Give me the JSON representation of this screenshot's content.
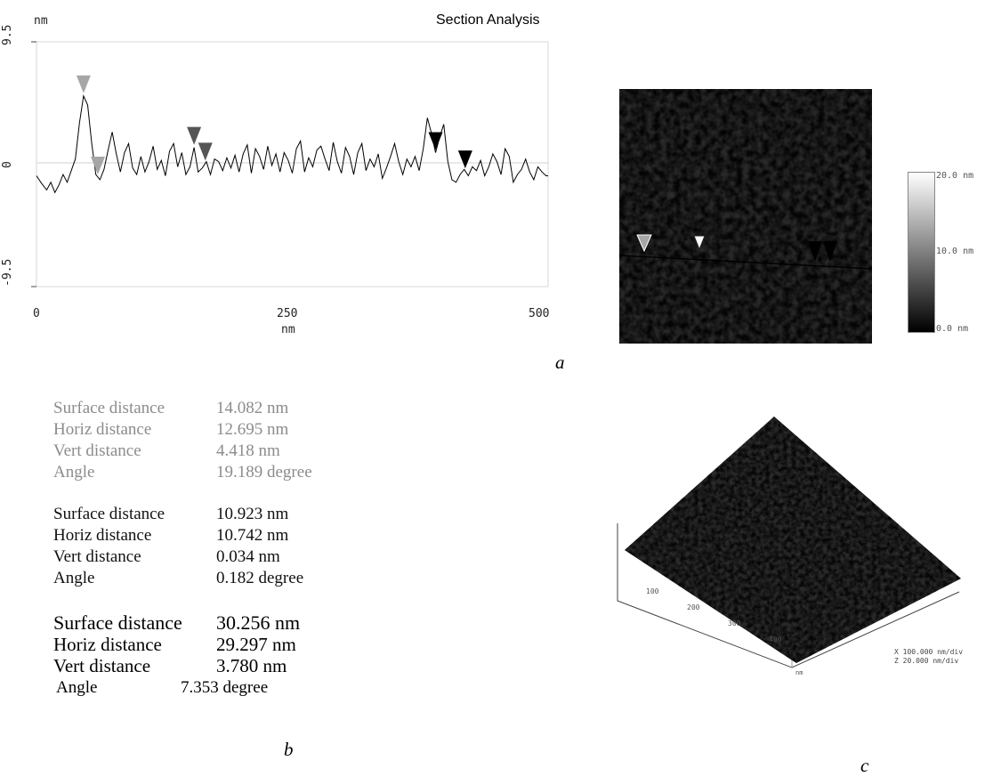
{
  "profile": {
    "title": "Section Analysis",
    "y_unit": "nm",
    "x_unit": "nm",
    "y_top_label": "9.5",
    "y_mid_label": "0",
    "y_bottom_label": "-9.5",
    "x_ticks": [
      "0",
      "250",
      "500"
    ]
  },
  "chart_data": [
    {
      "type": "line",
      "title": "Section Analysis",
      "xlabel": "nm",
      "ylabel": "nm",
      "xlim": [
        0,
        500
      ],
      "ylim": [
        -9.5,
        9.5
      ],
      "x_ticks": [
        0,
        250,
        500
      ],
      "y_ticks": [
        -9.5,
        0,
        9.5
      ],
      "series": [
        {
          "x": [
            0,
            5,
            10,
            14,
            18,
            22,
            26,
            30,
            34,
            38,
            42,
            46,
            50,
            54,
            58,
            62,
            66,
            70,
            74,
            78,
            82,
            86,
            90,
            94,
            98,
            102,
            106,
            110,
            114,
            118,
            122,
            126,
            130,
            134,
            138,
            142,
            146,
            150,
            154,
            158,
            162,
            166,
            170,
            174,
            178,
            182,
            186,
            190,
            194,
            198,
            202,
            206,
            210,
            214,
            218,
            222,
            226,
            230,
            234,
            238,
            242,
            246,
            250,
            254,
            258,
            262,
            266,
            270,
            274,
            278,
            282,
            286,
            290,
            294,
            298,
            302,
            306,
            310,
            314,
            318,
            322,
            326,
            330,
            334,
            338,
            342,
            346,
            350,
            354,
            358,
            362,
            366,
            370,
            374,
            378,
            382,
            386,
            390,
            394,
            398,
            402,
            406,
            410,
            414,
            418,
            422,
            426,
            430,
            434,
            438,
            442,
            446,
            450,
            454,
            458,
            462,
            466,
            470,
            474,
            478,
            482,
            486,
            490,
            494,
            498,
            500
          ],
          "y": [
            -0.9,
            -1.5,
            -2.0,
            -1.4,
            -2.2,
            -1.6,
            -0.8,
            -1.4,
            -0.5,
            0.4,
            3.2,
            5.3,
            4.6,
            1.6,
            -0.8,
            -1.2,
            -0.4,
            1.1,
            2.5,
            0.8,
            -0.6,
            0.9,
            1.6,
            -0.3,
            -0.8,
            0.6,
            -0.6,
            0.2,
            1.4,
            -0.4,
            0.3,
            -0.9,
            1.0,
            1.6,
            -0.2,
            0.9,
            -0.8,
            -0.2,
            1.3,
            -0.6,
            -0.3,
            0.2,
            -0.8,
            0.4,
            0.2,
            -0.5,
            0.5,
            -0.3,
            0.7,
            -0.6,
            0.8,
            1.5,
            -0.7,
            1.2,
            0.6,
            -0.4,
            1.4,
            -0.1,
            0.8,
            -0.6,
            0.9,
            0.3,
            -0.7,
            1.2,
            1.8,
            -0.6,
            0.5,
            -0.2,
            1.1,
            1.4,
            0.4,
            -0.5,
            1.7,
            0.2,
            -0.7,
            1.3,
            0.6,
            -0.8,
            0.9,
            1.6,
            -0.5,
            0.4,
            -0.2,
            0.8,
            -1.1,
            -0.3,
            0.6,
            1.6,
            0.2,
            -0.8,
            0.4,
            -0.2,
            0.6,
            -0.5,
            1.2,
            3.6,
            2.4,
            0.9,
            2.1,
            3.1,
            0.2,
            -1.2,
            -1.4,
            -0.8,
            -0.4,
            -0.9,
            -0.2,
            -0.5,
            0.3,
            -0.9,
            -0.2,
            0.8,
            0.2,
            -0.8,
            1.2,
            0.6,
            -1.4,
            -0.8,
            -0.4,
            0.4,
            -0.6,
            -1.2,
            -0.2,
            -0.6,
            -0.9,
            -0.9
          ]
        }
      ],
      "markers": [
        {
          "x": 46,
          "color": "#a6a6a6"
        },
        {
          "x": 60,
          "color": "#a6a6a6"
        },
        {
          "x": 154,
          "color": "#555555"
        },
        {
          "x": 165,
          "color": "#555555"
        },
        {
          "x": 390,
          "color": "#000000"
        },
        {
          "x": 419,
          "color": "#000000"
        }
      ]
    }
  ],
  "afm_top": {
    "scale_labels": [
      "20.0 nm",
      "10.0 nm",
      "0.0 nm"
    ]
  },
  "afm_3d": {
    "axis_ticks": [
      "100",
      "200",
      "300",
      "400"
    ],
    "axis_unit": "nm",
    "legend_x": "X  100.000 nm/div",
    "legend_z": "Z  20.000 nm/div"
  },
  "measurements": {
    "group1": [
      {
        "label": "Surface distance",
        "value": "14.082 nm"
      },
      {
        "label": "Horiz distance",
        "value": "12.695 nm"
      },
      {
        "label": "Vert distance",
        "value": "4.418 nm"
      },
      {
        "label": "Angle",
        "value": "19.189 degree"
      }
    ],
    "group2": [
      {
        "label": "Surface distance",
        "value": "10.923 nm"
      },
      {
        "label": "Horiz distance",
        "value": "10.742 nm"
      },
      {
        "label": "Vert distance",
        "value": "0.034 nm"
      },
      {
        "label": "Angle",
        "value": "0.182 degree"
      }
    ],
    "group3": [
      {
        "label": "Surface distance",
        "value": "30.256 nm"
      },
      {
        "label": "Horiz distance",
        "value": "29.297 nm"
      },
      {
        "label": "Vert distance",
        "value": "3.780 nm"
      }
    ],
    "angle3": {
      "label": "Angle",
      "value": "7.353 degree"
    }
  },
  "panel_labels": {
    "a": "a",
    "b": "b",
    "c": "c"
  },
  "colors": {
    "marker_light": "#a6a6a6",
    "marker_dark": "#555555",
    "marker_black": "#000000"
  }
}
